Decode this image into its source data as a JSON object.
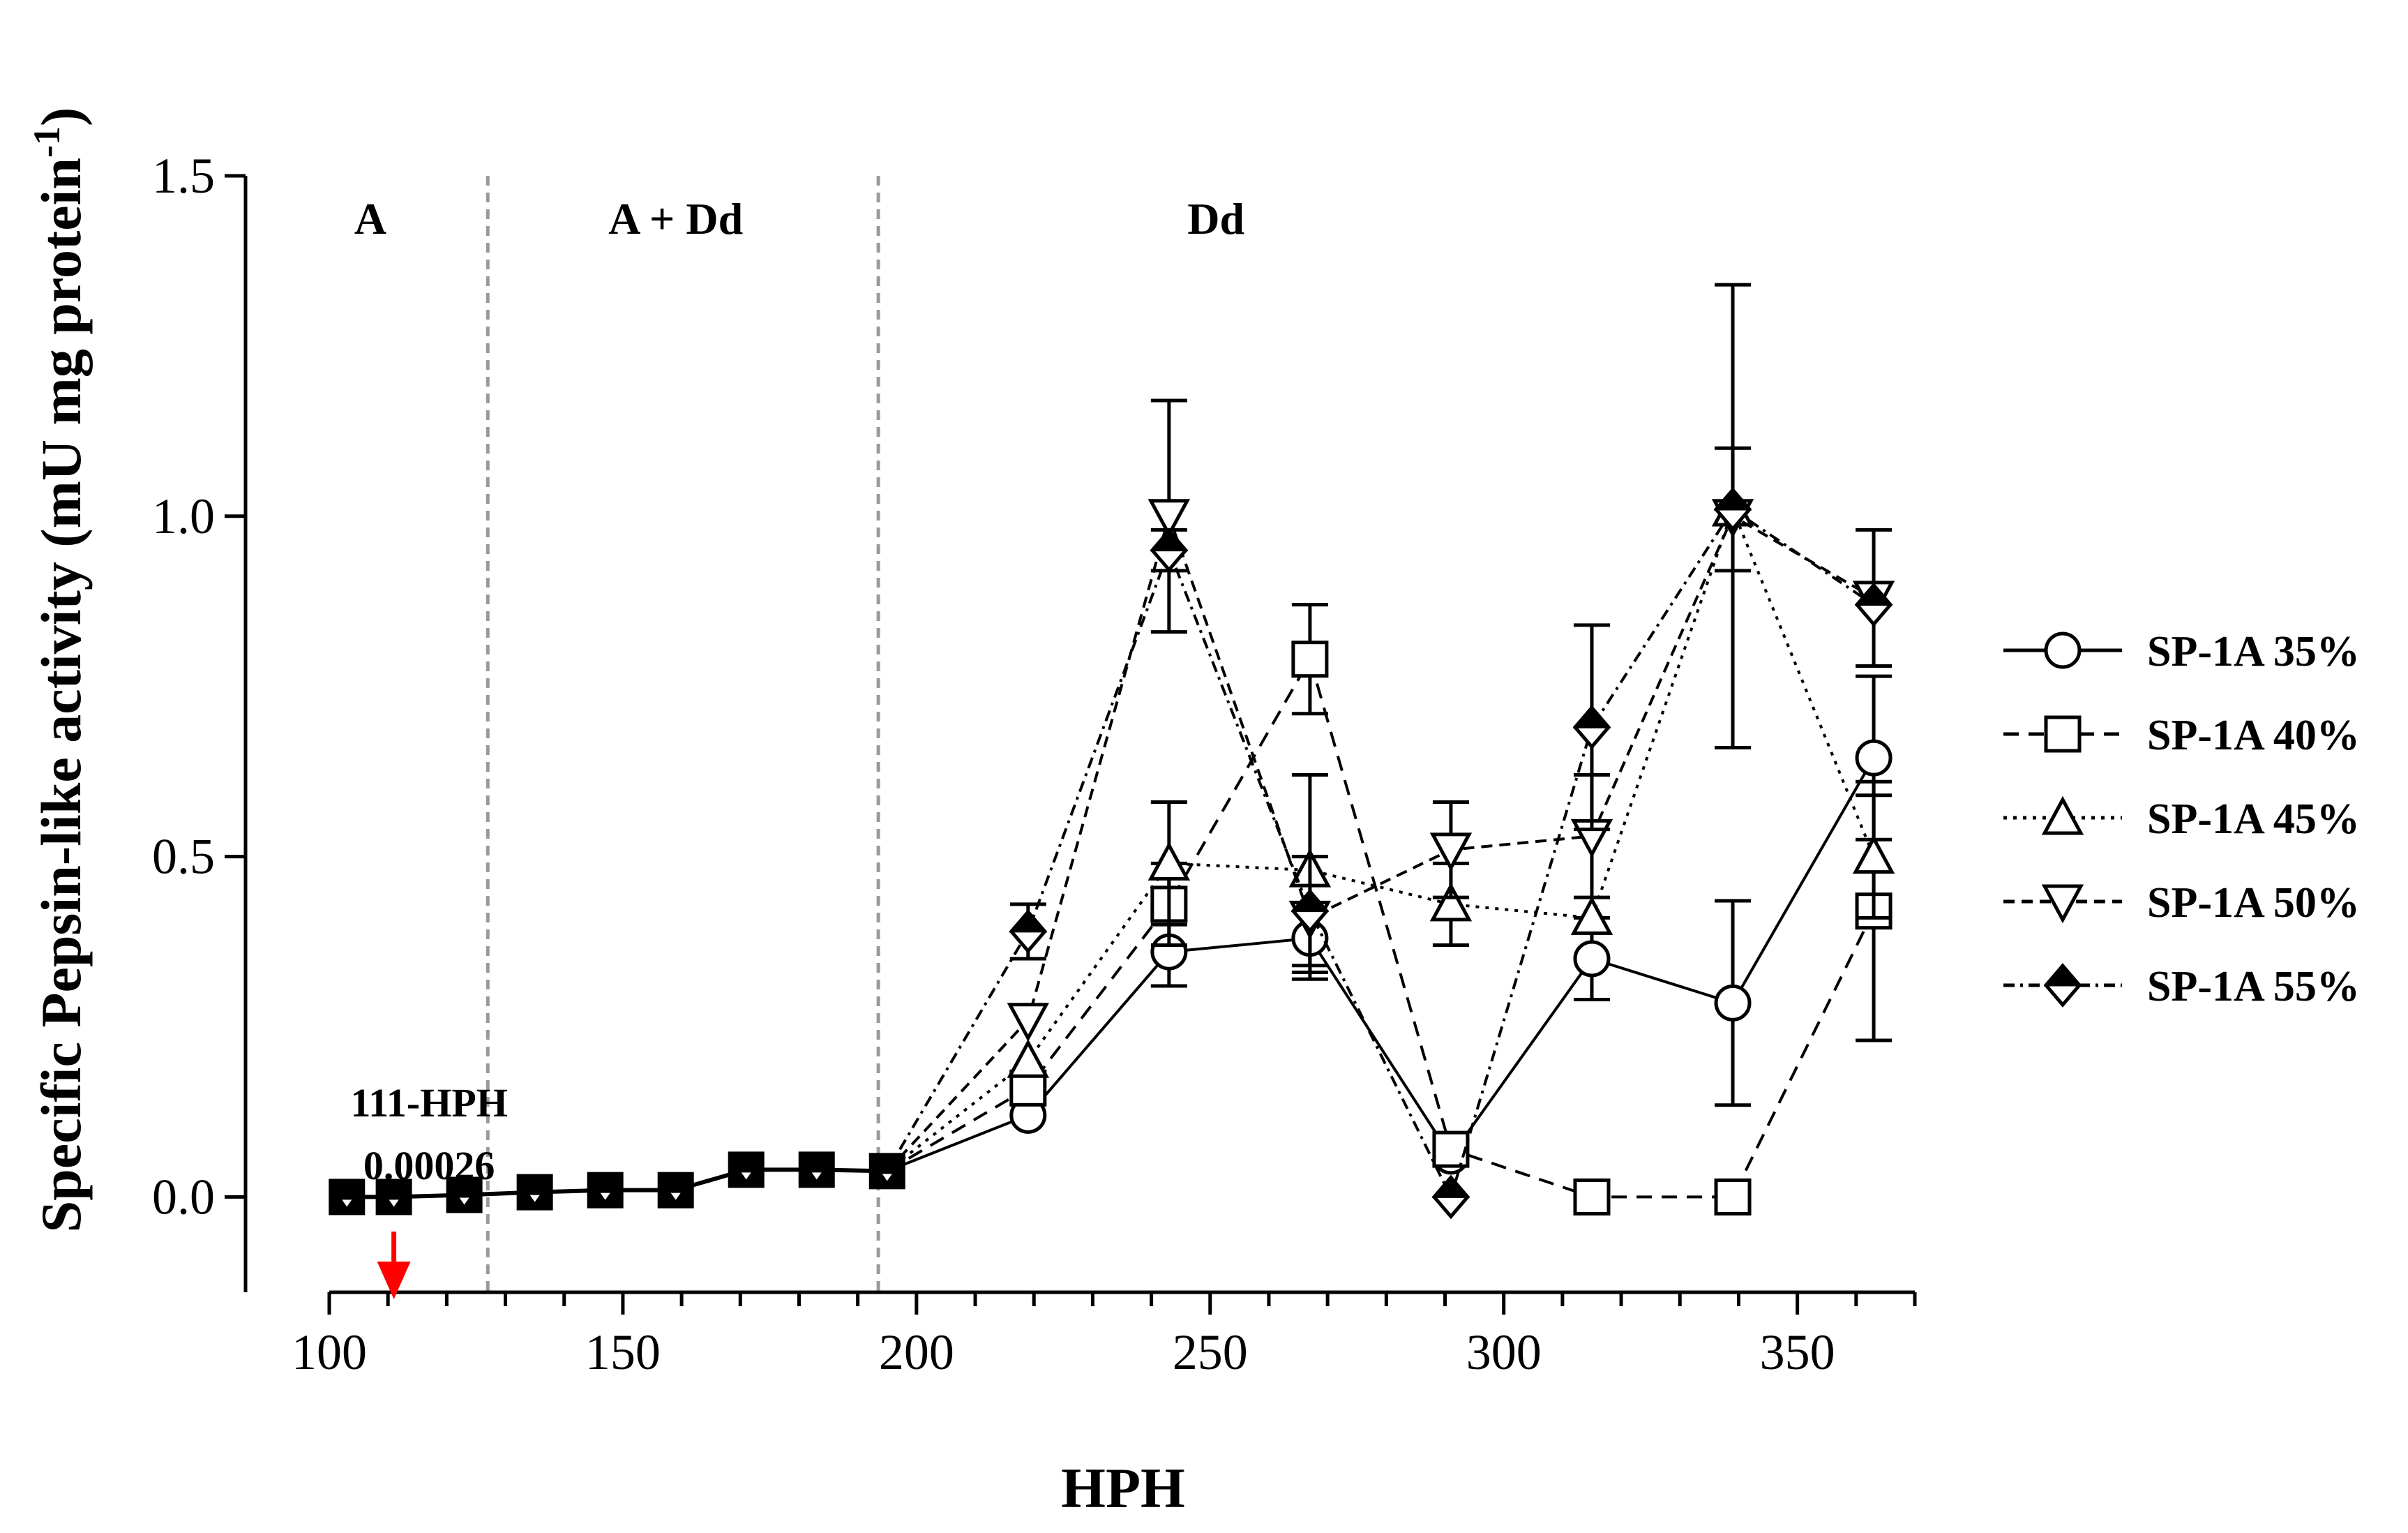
{
  "chart_data": {
    "type": "line",
    "title": "",
    "xlabel": "HPH",
    "ylabel": "Specific Pepsin-like activity (mU mg protein",
    "ylabel_superscript": "-1",
    "ylabel_close": ")",
    "xlim": [
      100,
      370
    ],
    "ylim": [
      -0.14,
      1.5
    ],
    "xticks": [
      100,
      150,
      200,
      250,
      300,
      350
    ],
    "xtick_labels": [
      "100",
      "150",
      "200",
      "250",
      "300",
      "350"
    ],
    "yticks": [
      0.0,
      0.5,
      1.0,
      1.5
    ],
    "ytick_labels": [
      "0.0",
      "0.5",
      "1.0",
      "1.5"
    ],
    "regions": [
      {
        "label": "A",
        "center_x": 107
      },
      {
        "label": "A + Dd",
        "center_x": 159
      },
      {
        "label": "Dd",
        "center_x": 251
      }
    ],
    "dividers": [
      127,
      193.5
    ],
    "annotation": {
      "line1": "111-HPH",
      "line2": "0.00026",
      "x": 111
    },
    "early_x": [
      103,
      111,
      123,
      135,
      147,
      159,
      171,
      183,
      195
    ],
    "early_y": [
      0.0,
      0.0,
      0.003,
      0.007,
      0.01,
      0.01,
      0.04,
      0.04,
      0.038
    ],
    "x": [
      195,
      219,
      243,
      267,
      291,
      315,
      339,
      363
    ],
    "series": [
      {
        "name": "SP-1A 35%",
        "marker": "circle",
        "dash": "",
        "values": [
          0.038,
          0.12,
          0.36,
          0.38,
          0.06,
          0.35,
          0.285,
          0.645
        ],
        "errors": [
          0,
          0,
          0.05,
          0.05,
          0,
          0.06,
          0.15,
          0.12
        ]
      },
      {
        "name": "SP-1A 40%",
        "marker": "square",
        "dash": "22,14",
        "values": [
          0.038,
          0.16,
          0.43,
          0.79,
          0.07,
          0.0,
          0.0,
          0.42
        ],
        "errors": [
          0,
          0,
          0.06,
          0.08,
          0,
          0,
          0,
          0.19
        ]
      },
      {
        "name": "SP-1A 45%",
        "marker": "triangle-up",
        "dash": "5,9",
        "values": [
          0.038,
          0.2,
          0.49,
          0.48,
          0.43,
          0.41,
          1.01,
          0.5
        ],
        "errors": [
          0,
          0,
          0.09,
          0.14,
          0.06,
          0,
          0.09,
          0.09
        ]
      },
      {
        "name": "SP-1A 50%",
        "marker": "triangle-down",
        "dash": "16,10",
        "values": [
          0.038,
          0.26,
          1.0,
          0.41,
          0.51,
          0.53,
          1.0,
          0.88
        ],
        "errors": [
          0,
          0,
          0.17,
          0.09,
          0.07,
          0.09,
          0.34,
          0.1
        ]
      },
      {
        "name": "SP-1A 55%",
        "marker": "diamond",
        "dash": "16,8,4,8",
        "values": [
          0.038,
          0.39,
          0.95,
          0.42,
          0.0,
          0.69,
          1.01,
          0.87
        ],
        "errors": [
          0,
          0.04,
          0.03,
          0,
          0,
          0.15,
          0,
          0
        ]
      }
    ],
    "legend_position": "right"
  }
}
